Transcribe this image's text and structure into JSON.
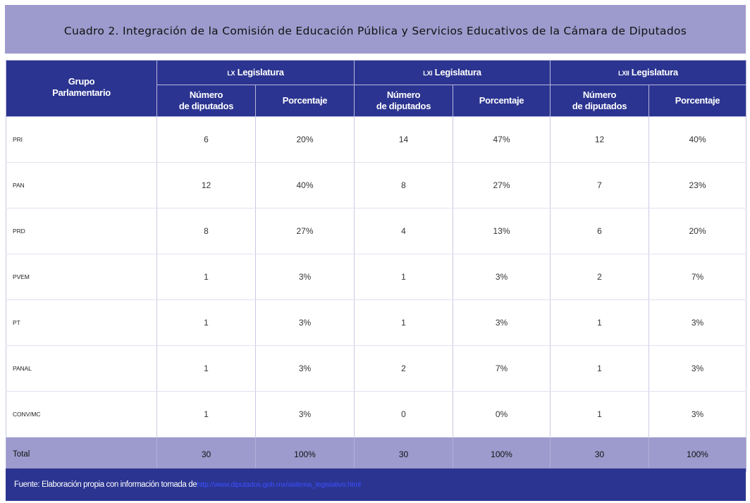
{
  "title": "Cuadro 2. Integración de la Comisión de Educación Pública y Servicios Educativos de la Cámara de Diputados",
  "header": {
    "group_line1": "Grupo",
    "group_line2": "Parlamentario",
    "legislaturas": [
      {
        "roman": "LX",
        "suffix": " Legislatura"
      },
      {
        "roman": "LXI",
        "suffix": " Legislatura"
      },
      {
        "roman": "LXII",
        "suffix": " Legislatura"
      }
    ],
    "num_line1": "Número",
    "num_line2": "de diputados",
    "pct": "Porcentaje"
  },
  "rows": [
    {
      "party": "PRI",
      "v": [
        "6",
        "20%",
        "14",
        "47%",
        "12",
        "40%"
      ]
    },
    {
      "party": "PAN",
      "v": [
        "12",
        "40%",
        "8",
        "27%",
        "7",
        "23%"
      ]
    },
    {
      "party": "PRD",
      "v": [
        "8",
        "27%",
        "4",
        "13%",
        "6",
        "20%"
      ]
    },
    {
      "party": "PVEM",
      "v": [
        "1",
        "3%",
        "1",
        "3%",
        "2",
        "7%"
      ]
    },
    {
      "party": "PT",
      "v": [
        "1",
        "3%",
        "1",
        "3%",
        "1",
        "3%"
      ]
    },
    {
      "party": "PANAL",
      "v": [
        "1",
        "3%",
        "2",
        "7%",
        "1",
        "3%"
      ]
    },
    {
      "party": "CONV/MC",
      "v": [
        "1",
        "3%",
        "0",
        "0%",
        "1",
        "3%"
      ]
    }
  ],
  "total": {
    "label": "Total",
    "v": [
      "30",
      "100%",
      "30",
      "100%",
      "30",
      "100%"
    ]
  },
  "source": {
    "text": "Fuente: Elaboración propia con información tomada de ",
    "link": "http://www.diputados.gob.mx/sistema_legislativo.html"
  },
  "colors": {
    "header_bg": "#2b3490",
    "title_bg": "#9d9bcd",
    "total_bg": "#9d9bcd",
    "link": "#3a50ff"
  }
}
